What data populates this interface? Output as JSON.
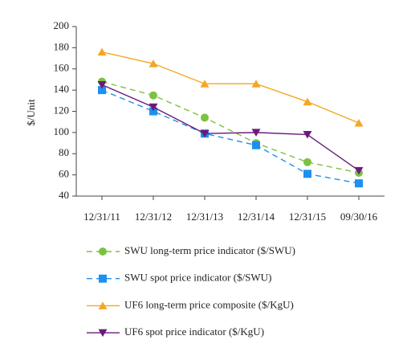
{
  "chart_data": {
    "type": "line",
    "y_label": "$/Unit",
    "categories": [
      "12/31/11",
      "12/31/12",
      "12/31/13",
      "12/31/14",
      "12/31/15",
      "09/30/16"
    ],
    "series": [
      {
        "name": "SWU long-term price indicator ($/SWU)",
        "color": "#7cc242",
        "dashed": true,
        "marker": "circle",
        "values": [
          148,
          135,
          114,
          90,
          72,
          62
        ]
      },
      {
        "name": "SWU spot price indicator ($/SWU)",
        "color": "#1e90f0",
        "dashed": true,
        "marker": "square",
        "values": [
          140,
          120,
          99,
          88,
          61,
          52
        ]
      },
      {
        "name": "UF6 long-term price composite ($/KgU)",
        "color": "#f5a623",
        "dashed": false,
        "marker": "triangle-up",
        "values": [
          176,
          165,
          146,
          146,
          129,
          109
        ]
      },
      {
        "name": "UF6 spot price indicator ($/KgU)",
        "color": "#6a1b7a",
        "dashed": false,
        "marker": "triangle-down",
        "values": [
          145,
          124,
          99,
          100,
          98,
          64
        ]
      }
    ],
    "ylim": [
      40,
      200
    ],
    "yticks": [
      40,
      60,
      80,
      100,
      120,
      140,
      160,
      180,
      200
    ],
    "grid": false
  }
}
